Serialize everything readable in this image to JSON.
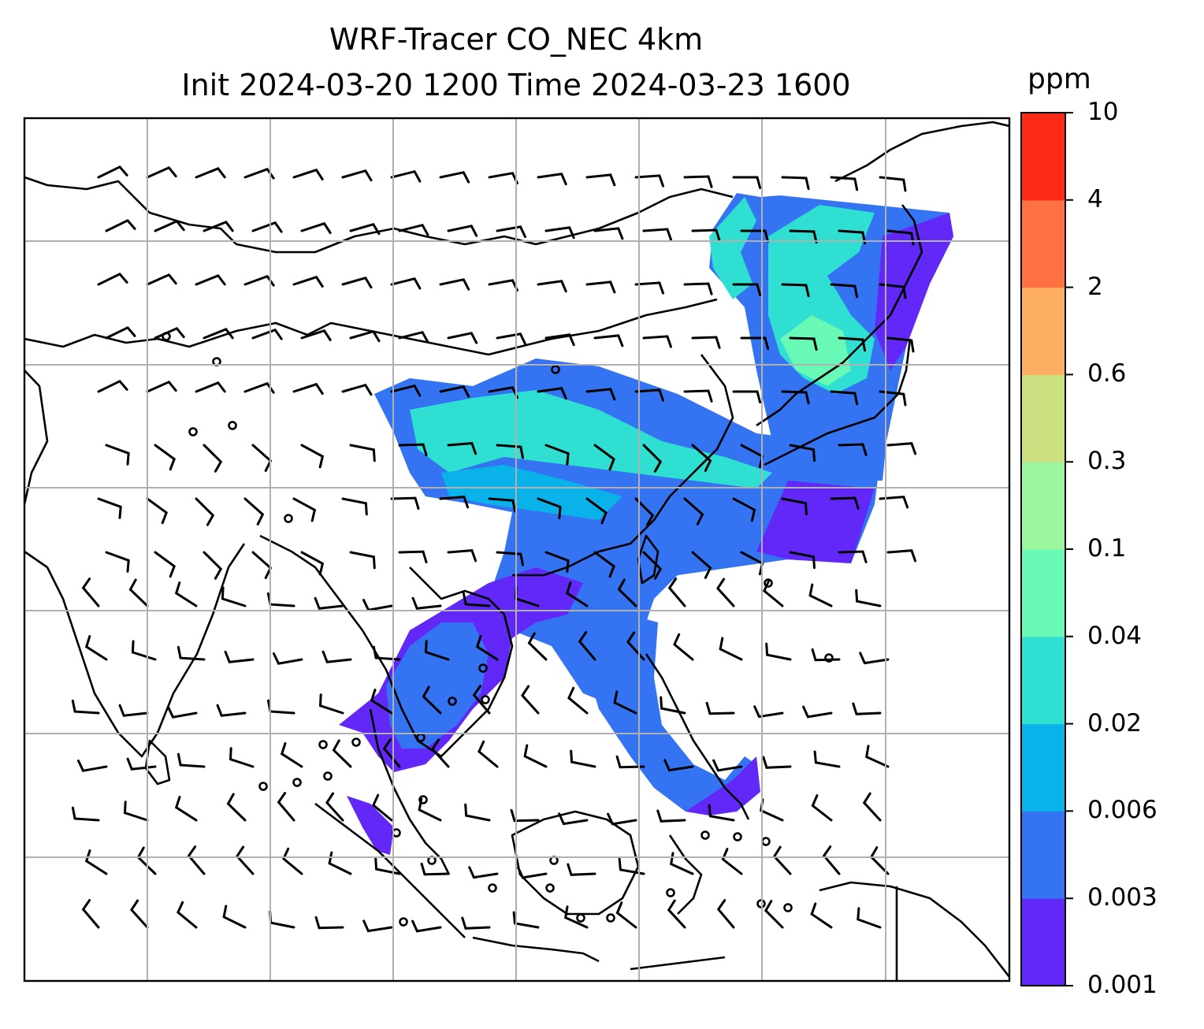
{
  "title": {
    "line1": "WRF-Tracer CO_NEC 4km",
    "line2": "Init 2024-03-20 1200 Time 2024-03-23 1600"
  },
  "colorbar": {
    "unit": "ppm",
    "levels": [
      "0.001",
      "0.003",
      "0.006",
      "0.02",
      "0.04",
      "0.1",
      "0.3",
      "0.6",
      "2",
      "4",
      "10"
    ],
    "colors": [
      "#6128f8",
      "#3474f2",
      "#09b2e8",
      "#2fe0d2",
      "#67f9b5",
      "#9bf79d",
      "#cbe080",
      "#fdae61",
      "#ff7140",
      "#fd2a17"
    ]
  },
  "chart_data": {
    "type": "map",
    "variable": "CO_NEC tracer",
    "unit": "ppm",
    "grid": true,
    "overlay": "wind barbs",
    "coastlines": true
  },
  "colors": {
    "gridline": "#b0b0b0",
    "coastline": "#000000",
    "frame": "#000000"
  }
}
